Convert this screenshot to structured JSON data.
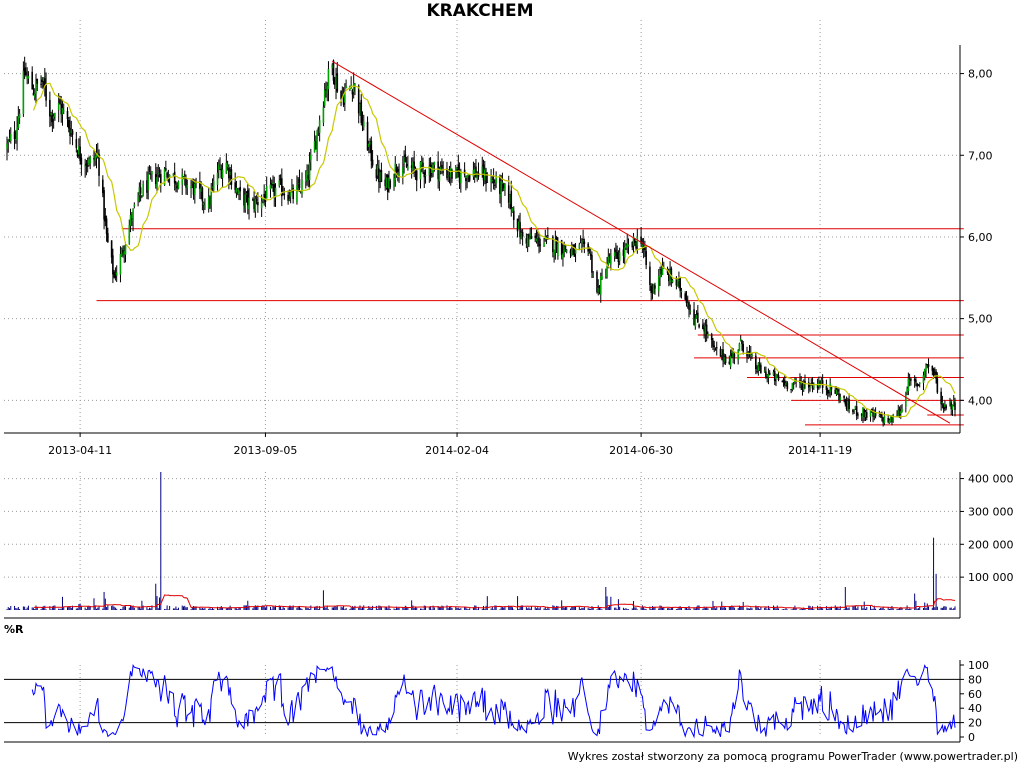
{
  "chart_data": [
    {
      "type": "candlestick",
      "title": "KRAKCHEM",
      "y_ticks": [
        "8,00",
        "7,00",
        "6,00",
        "5,00",
        "4,00"
      ],
      "y_tick_values": [
        8,
        7,
        6,
        5,
        4
      ],
      "ylim": [
        3.6,
        8.35
      ],
      "x_ticks": [
        "2013-04-11",
        "2013-09-05",
        "2014-02-04",
        "2014-06-30",
        "2014-11-19"
      ],
      "x_tick_dates": [
        "2013-04-11",
        "2013-09-05",
        "2014-02-04",
        "2014-06-30",
        "2014-11-19"
      ],
      "date_range": [
        "2013-02-12",
        "2015-03-06"
      ],
      "price_anchors": [
        {
          "date": "2013-02-12",
          "close": 7.1
        },
        {
          "date": "2013-02-19",
          "close": 7.3
        },
        {
          "date": "2013-02-26",
          "close": 8.0
        },
        {
          "date": "2013-03-05",
          "close": 7.8
        },
        {
          "date": "2013-03-12",
          "close": 7.9
        },
        {
          "date": "2013-03-19",
          "close": 7.5
        },
        {
          "date": "2013-03-26",
          "close": 7.6
        },
        {
          "date": "2013-04-04",
          "close": 7.3
        },
        {
          "date": "2013-04-11",
          "close": 7.0
        },
        {
          "date": "2013-04-18",
          "close": 6.9
        },
        {
          "date": "2013-04-25",
          "close": 7.0
        },
        {
          "date": "2013-05-02",
          "close": 6.0
        },
        {
          "date": "2013-05-08",
          "close": 5.5
        },
        {
          "date": "2013-05-14",
          "close": 5.8
        },
        {
          "date": "2013-05-21",
          "close": 6.2
        },
        {
          "date": "2013-05-28",
          "close": 6.5
        },
        {
          "date": "2013-06-06",
          "close": 6.7
        },
        {
          "date": "2013-06-17",
          "close": 6.8
        },
        {
          "date": "2013-06-28",
          "close": 6.7
        },
        {
          "date": "2013-07-10",
          "close": 6.6
        },
        {
          "date": "2013-07-22",
          "close": 6.4
        },
        {
          "date": "2013-07-29",
          "close": 6.8
        },
        {
          "date": "2013-08-05",
          "close": 6.9
        },
        {
          "date": "2013-08-15",
          "close": 6.5
        },
        {
          "date": "2013-08-26",
          "close": 6.4
        },
        {
          "date": "2013-09-05",
          "close": 6.5
        },
        {
          "date": "2013-09-16",
          "close": 6.6
        },
        {
          "date": "2013-09-27",
          "close": 6.5
        },
        {
          "date": "2013-10-08",
          "close": 6.7
        },
        {
          "date": "2013-10-15",
          "close": 7.2
        },
        {
          "date": "2013-10-22",
          "close": 7.8
        },
        {
          "date": "2013-10-28",
          "close": 8.1
        },
        {
          "date": "2013-11-04",
          "close": 7.7
        },
        {
          "date": "2013-11-14",
          "close": 7.9
        },
        {
          "date": "2013-11-22",
          "close": 7.3
        },
        {
          "date": "2013-12-02",
          "close": 6.8
        },
        {
          "date": "2013-12-09",
          "close": 6.6
        },
        {
          "date": "2013-12-19",
          "close": 6.9
        },
        {
          "date": "2014-01-03",
          "close": 6.8
        },
        {
          "date": "2014-01-15",
          "close": 6.85
        },
        {
          "date": "2014-02-04",
          "close": 6.75
        },
        {
          "date": "2014-02-17",
          "close": 6.8
        },
        {
          "date": "2014-03-03",
          "close": 6.7
        },
        {
          "date": "2014-03-17",
          "close": 6.5
        },
        {
          "date": "2014-03-27",
          "close": 6.0
        },
        {
          "date": "2014-04-10",
          "close": 5.95
        },
        {
          "date": "2014-04-24",
          "close": 5.9
        },
        {
          "date": "2014-05-08",
          "close": 5.8
        },
        {
          "date": "2014-05-19",
          "close": 5.9
        },
        {
          "date": "2014-05-26",
          "close": 5.3
        },
        {
          "date": "2014-06-04",
          "close": 5.7
        },
        {
          "date": "2014-06-16",
          "close": 5.8
        },
        {
          "date": "2014-06-30",
          "close": 6.0
        },
        {
          "date": "2014-07-08",
          "close": 5.3
        },
        {
          "date": "2014-07-15",
          "close": 5.6
        },
        {
          "date": "2014-07-24",
          "close": 5.5
        },
        {
          "date": "2014-08-04",
          "close": 5.3
        },
        {
          "date": "2014-08-11",
          "close": 5.0
        },
        {
          "date": "2014-08-19",
          "close": 4.9
        },
        {
          "date": "2014-08-27",
          "close": 4.6
        },
        {
          "date": "2014-09-08",
          "close": 4.5
        },
        {
          "date": "2014-09-18",
          "close": 4.7
        },
        {
          "date": "2014-09-29",
          "close": 4.4
        },
        {
          "date": "2014-10-10",
          "close": 4.3
        },
        {
          "date": "2014-10-24",
          "close": 4.2
        },
        {
          "date": "2014-11-07",
          "close": 4.2
        },
        {
          "date": "2014-11-19",
          "close": 4.2
        },
        {
          "date": "2014-12-02",
          "close": 4.1
        },
        {
          "date": "2014-12-12",
          "close": 3.9
        },
        {
          "date": "2014-12-22",
          "close": 3.85
        },
        {
          "date": "2015-01-02",
          "close": 3.8
        },
        {
          "date": "2015-01-14",
          "close": 3.75
        },
        {
          "date": "2015-01-23",
          "close": 3.9
        },
        {
          "date": "2015-01-27",
          "close": 4.2
        },
        {
          "date": "2015-02-05",
          "close": 4.2
        },
        {
          "date": "2015-02-12",
          "close": 4.45
        },
        {
          "date": "2015-02-18",
          "close": 4.3
        },
        {
          "date": "2015-02-23",
          "close": 3.95
        },
        {
          "date": "2015-03-06",
          "close": 3.95
        }
      ],
      "moving_average_color": "#c8c800",
      "candle_color": "#000000",
      "trend_line": {
        "start": {
          "date": "2013-10-28",
          "value": 8.15
        },
        "end": {
          "date": "2015-03-02",
          "value": 3.72
        },
        "color": "#e00000"
      },
      "support_resistance_lines": [
        {
          "value": 6.1,
          "from": "2013-05-14",
          "to": "2015-03-13",
          "color": "#e00000"
        },
        {
          "value": 5.22,
          "from": "2013-04-24",
          "to": "2015-03-13",
          "color": "#e00000"
        },
        {
          "value": 4.8,
          "from": "2014-08-14",
          "to": "2015-03-13",
          "color": "#e00000"
        },
        {
          "value": 4.52,
          "from": "2014-08-11",
          "to": "2015-03-13",
          "color": "#e00000"
        },
        {
          "value": 4.28,
          "from": "2014-09-22",
          "to": "2015-03-13",
          "color": "#e00000"
        },
        {
          "value": 4.0,
          "from": "2014-10-27",
          "to": "2015-03-13",
          "color": "#e00000"
        },
        {
          "value": 3.82,
          "from": "2015-02-12",
          "to": "2015-03-13",
          "color": "#e00000"
        },
        {
          "value": 3.7,
          "from": "2014-11-07",
          "to": "2015-03-13",
          "color": "#e00000"
        }
      ]
    },
    {
      "type": "bar",
      "title": "",
      "y_ticks": [
        "400 000",
        "300 000",
        "200 000",
        "100 000"
      ],
      "y_tick_values": [
        400000,
        300000,
        200000,
        100000
      ],
      "ylim": [
        0,
        420000
      ],
      "bar_color": "#000080",
      "average_line_color": "#e00000",
      "baseline_volume": 8000,
      "volume_spikes": [
        {
          "date": "2013-06-14",
          "value": 420000
        },
        {
          "date": "2013-06-10",
          "value": 80000
        },
        {
          "date": "2013-04-30",
          "value": 55000
        },
        {
          "date": "2013-03-28",
          "value": 40000
        },
        {
          "date": "2013-10-21",
          "value": 60000
        },
        {
          "date": "2014-06-02",
          "value": 70000
        },
        {
          "date": "2014-12-09",
          "value": 70000
        },
        {
          "date": "2015-02-02",
          "value": 50000
        },
        {
          "date": "2015-02-17",
          "value": 220000
        },
        {
          "date": "2015-02-19",
          "value": 110000
        }
      ]
    },
    {
      "type": "line",
      "title": "%R",
      "y_ticks": [
        "100",
        "80",
        "60",
        "40",
        "20",
        "0"
      ],
      "y_tick_values": [
        100,
        80,
        60,
        40,
        20,
        0
      ],
      "ylim": [
        0,
        100
      ],
      "reference_lines": [
        80,
        20
      ],
      "line_color": "#0000ff",
      "oscillator_period": 14
    }
  ],
  "footer": "Wykres został stworzony za pomocą programu PowerTrader (www.powertrader.pl)"
}
